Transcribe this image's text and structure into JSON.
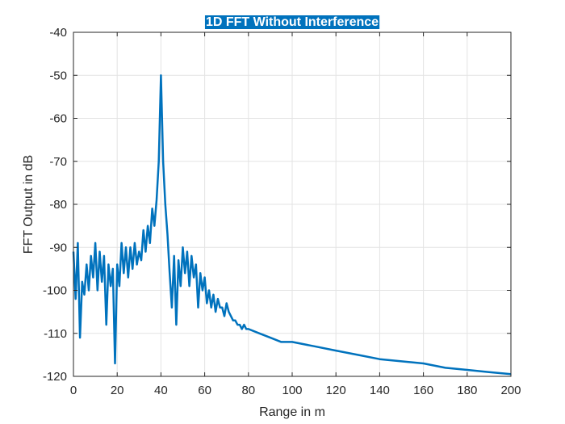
{
  "chart_data": {
    "type": "line",
    "title": "1D FFT Without Interference",
    "xlabel": "Range in m",
    "ylabel": "FFT Output in dB",
    "xlim": [
      0,
      200
    ],
    "ylim": [
      -120,
      -40
    ],
    "xticks": [
      0,
      20,
      40,
      60,
      80,
      100,
      120,
      140,
      160,
      180,
      200
    ],
    "yticks": [
      -120,
      -110,
      -100,
      -90,
      -80,
      -70,
      -60,
      -50,
      -40
    ],
    "grid": true,
    "colors": {
      "line": "#0072BD",
      "title_bg": "#0072BD",
      "grid": "#e3e3e3",
      "axis": "#262626"
    },
    "series": [
      {
        "x": [
          0,
          1,
          2,
          3,
          4,
          5,
          6,
          7,
          8,
          9,
          10,
          11,
          12,
          13,
          14,
          15,
          16,
          17,
          18,
          19,
          20,
          21,
          22,
          23,
          24,
          25,
          26,
          27,
          28,
          29,
          30,
          31,
          32,
          33,
          34,
          35,
          36,
          37,
          38,
          39,
          40,
          41,
          42,
          43,
          44,
          45,
          46,
          47,
          48,
          49,
          50,
          51,
          52,
          53,
          54,
          55,
          56,
          57,
          58,
          59,
          60,
          61,
          62,
          63,
          64,
          65,
          66,
          67,
          68,
          69,
          70,
          71,
          72,
          73,
          74,
          75,
          76,
          77,
          78,
          79,
          80,
          85,
          90,
          95,
          100,
          110,
          120,
          130,
          140,
          150,
          160,
          170,
          180,
          190,
          200
        ],
        "y": [
          -91,
          -102,
          -89,
          -111,
          -98,
          -101,
          -94,
          -100,
          -92,
          -97,
          -89,
          -100,
          -91,
          -98,
          -92,
          -108,
          -94,
          -99,
          -95,
          -117,
          -94,
          -99,
          -89,
          -96,
          -90,
          -97,
          -90,
          -95,
          -89,
          -94,
          -91,
          -93,
          -86,
          -91,
          -85,
          -89,
          -81,
          -85,
          -79,
          -70,
          -50,
          -70,
          -80,
          -87,
          -96,
          -104,
          -92,
          -108,
          -93,
          -99,
          -90,
          -96,
          -91,
          -99,
          -92,
          -97,
          -94,
          -104,
          -96,
          -100,
          -97,
          -103,
          -100,
          -104,
          -101,
          -105,
          -102,
          -104,
          -104,
          -106,
          -103,
          -105,
          -106,
          -107,
          -107,
          -108,
          -108,
          -109,
          -108,
          -109,
          -109,
          -110,
          -111,
          -112,
          -112,
          -113,
          -114,
          -115,
          -116,
          -116.5,
          -117,
          -118,
          -118.5,
          -119,
          -119.5
        ]
      }
    ]
  }
}
